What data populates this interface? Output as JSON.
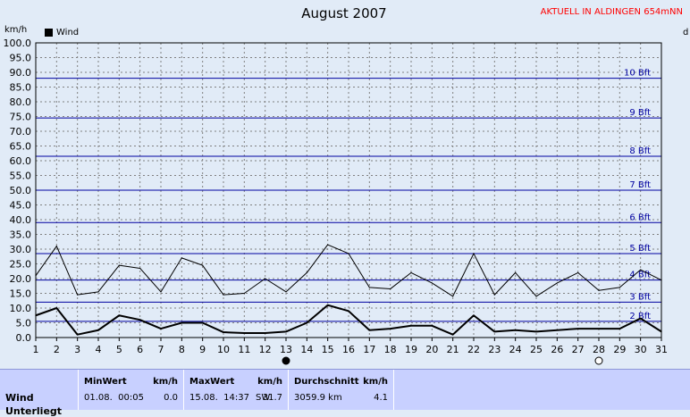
{
  "title": "August 2007",
  "station": "AKTUELL IN ALDINGEN 654mNN",
  "ylabel_left": "km/h",
  "ylabel_right": "d",
  "legend": "Wind",
  "colors": {
    "grid": "#808080",
    "beaufort": "#0000a0",
    "series": "#000000",
    "background": "#e1ebf7",
    "table": "#c8d0ff",
    "station": "#ff0000"
  },
  "chart_data": {
    "type": "line",
    "title": "August 2007",
    "ylabel": "km/h",
    "xlabel": "",
    "ylim": [
      0,
      100
    ],
    "yticks": [
      "0.0",
      "5.0",
      "10.0",
      "15.0",
      "20.0",
      "25.0",
      "30.0",
      "35.0",
      "40.0",
      "45.0",
      "50.0",
      "55.0",
      "60.0",
      "65.0",
      "70.0",
      "75.0",
      "80.0",
      "85.0",
      "90.0",
      "95.0",
      "100.0"
    ],
    "x": [
      1,
      2,
      3,
      4,
      5,
      6,
      7,
      8,
      9,
      10,
      11,
      12,
      13,
      14,
      15,
      16,
      17,
      18,
      19,
      20,
      21,
      22,
      23,
      24,
      25,
      26,
      27,
      28,
      29,
      30,
      31
    ],
    "grid": true,
    "legend_position": "top-left",
    "series": [
      {
        "name": "Wind",
        "style": "thick",
        "values": [
          7.5,
          10.0,
          1.0,
          2.5,
          7.5,
          6.0,
          3.0,
          5.0,
          5.0,
          1.8,
          1.5,
          1.5,
          2.0,
          5.0,
          11.0,
          9.0,
          2.5,
          3.0,
          4.0,
          4.0,
          1.0,
          7.5,
          2.0,
          2.5,
          2.0,
          2.5,
          3.0,
          3.0,
          3.0,
          6.5,
          2.0
        ]
      },
      {
        "name": "",
        "style": "thin",
        "values": [
          21.0,
          31.0,
          14.5,
          15.5,
          24.5,
          23.5,
          15.5,
          27.0,
          24.5,
          14.5,
          15.0,
          20.0,
          15.5,
          22.0,
          31.5,
          28.5,
          17.0,
          16.5,
          22.0,
          18.5,
          14.0,
          28.5,
          14.5,
          22.0,
          14.0,
          18.5,
          22.0,
          16.0,
          17.0,
          23.0,
          19.5
        ]
      }
    ],
    "beaufort": [
      {
        "label": "2 Bft",
        "value": 5.5
      },
      {
        "label": "3 Bft",
        "value": 12.0
      },
      {
        "label": "4 Bft",
        "value": 19.5
      },
      {
        "label": "5 Bft",
        "value": 28.5
      },
      {
        "label": "6 Bft",
        "value": 39.0
      },
      {
        "label": "7 Bft",
        "value": 50.0
      },
      {
        "label": "8 Bft",
        "value": 61.5
      },
      {
        "label": "9 Bft",
        "value": 74.5
      },
      {
        "label": "10 Bft",
        "value": 88.0
      }
    ],
    "moon_markers": [
      {
        "day": 13,
        "type": "new-moon"
      },
      {
        "day": 28,
        "type": "full-moon"
      }
    ]
  },
  "table": {
    "row_label": "Wind",
    "row_label2": "Unterliegt",
    "min": {
      "header": "MinWert",
      "unit": "km/h",
      "date": "01.08.  00:05",
      "value": "0.0"
    },
    "max": {
      "header": "MaxWert",
      "unit": "km/h",
      "date": "15.08.  14:37",
      "dir": "SW",
      "value": "31.7"
    },
    "avg": {
      "header": "Durchschnitt",
      "unit": "km/h",
      "distance": "3059.9 km",
      "value": "4.1"
    }
  }
}
